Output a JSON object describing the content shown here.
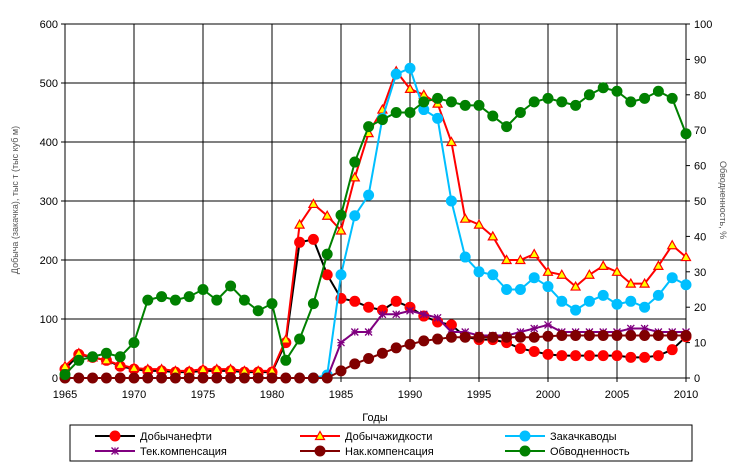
{
  "chart_data": {
    "type": "line",
    "title": "",
    "xlabel": "Годы",
    "ylabel_left": "Добыча (закачка), тыс т (тыс куб м)",
    "ylabel_right": "Обводненность, %",
    "xlim": [
      1965,
      2010
    ],
    "ylim_left": [
      0,
      600
    ],
    "ylim_right": [
      0,
      100
    ],
    "x_ticks": [
      1965,
      1970,
      1975,
      1980,
      1985,
      1990,
      1995,
      2000,
      2005,
      2010
    ],
    "y_left_ticks": [
      0,
      100,
      200,
      300,
      400,
      500,
      600
    ],
    "y_right_ticks": [
      0,
      10,
      20,
      30,
      40,
      50,
      60,
      70,
      80,
      90,
      100
    ],
    "grid": true,
    "legend_position": "bottom",
    "series": [
      {
        "name": "Добычанефти",
        "axis": "left",
        "color": "#ff0000",
        "marker": "circle",
        "x": [
          1965,
          1966,
          1967,
          1968,
          1969,
          1970,
          1971,
          1972,
          1973,
          1974,
          1975,
          1976,
          1977,
          1978,
          1979,
          1980,
          1981,
          1982,
          1983,
          1984,
          1985,
          1986,
          1987,
          1988,
          1989,
          1990,
          1991,
          1992,
          1993,
          1994,
          1995,
          1996,
          1997,
          1998,
          1999,
          2000,
          2001,
          2002,
          2003,
          2004,
          2005,
          2006,
          2007,
          2008,
          2009,
          2010
        ],
        "y": [
          15,
          40,
          35,
          30,
          20,
          15,
          12,
          12,
          10,
          10,
          12,
          12,
          12,
          10,
          10,
          10,
          60,
          230,
          235,
          175,
          135,
          130,
          120,
          115,
          130,
          120,
          105,
          95,
          90,
          70,
          65,
          65,
          60,
          50,
          45,
          40,
          38,
          38,
          38,
          38,
          38,
          35,
          35,
          38,
          48,
          70
        ]
      },
      {
        "name": "Добычажидкости",
        "axis": "left",
        "color": "#ff0000",
        "marker": "triangle",
        "x": [
          1965,
          1966,
          1967,
          1968,
          1969,
          1970,
          1971,
          1972,
          1973,
          1974,
          1975,
          1976,
          1977,
          1978,
          1979,
          1980,
          1981,
          1982,
          1983,
          1984,
          1985,
          1986,
          1987,
          1988,
          1989,
          1990,
          1991,
          1992,
          1993,
          1994,
          1995,
          1996,
          1997,
          1998,
          1999,
          2000,
          2001,
          2002,
          2003,
          2004,
          2005,
          2006,
          2007,
          2008,
          2009,
          2010
        ],
        "y": [
          20,
          42,
          35,
          30,
          22,
          17,
          15,
          15,
          12,
          12,
          15,
          15,
          15,
          12,
          12,
          12,
          65,
          260,
          295,
          275,
          250,
          340,
          415,
          455,
          520,
          490,
          480,
          465,
          400,
          270,
          260,
          240,
          200,
          200,
          210,
          180,
          175,
          155,
          175,
          190,
          180,
          160,
          160,
          190,
          225,
          205
        ]
      },
      {
        "name": "Закачкаводы",
        "axis": "left",
        "color": "#00bfff",
        "marker": "circle",
        "x": [
          1983,
          1984,
          1985,
          1986,
          1987,
          1988,
          1989,
          1990,
          1991,
          1992,
          1993,
          1994,
          1995,
          1996,
          1997,
          1998,
          1999,
          2000,
          2001,
          2002,
          2003,
          2004,
          2005,
          2006,
          2007,
          2008,
          2009,
          2010
        ],
        "y": [
          0,
          5,
          175,
          275,
          310,
          440,
          515,
          525,
          455,
          440,
          300,
          205,
          180,
          175,
          150,
          150,
          170,
          155,
          130,
          115,
          130,
          140,
          125,
          130,
          120,
          140,
          170,
          158
        ]
      },
      {
        "name": "Тек.компенсация",
        "axis": "right",
        "color": "#800080",
        "marker": "star",
        "x": [
          1965,
          1966,
          1967,
          1968,
          1969,
          1970,
          1971,
          1972,
          1973,
          1974,
          1975,
          1976,
          1977,
          1978,
          1979,
          1980,
          1981,
          1982,
          1983,
          1984,
          1985,
          1986,
          1987,
          1988,
          1989,
          1990,
          1991,
          1992,
          1993,
          1994,
          1995,
          1996,
          1997,
          1998,
          1999,
          2000,
          2001,
          2002,
          2003,
          2004,
          2005,
          2006,
          2007,
          2008,
          2009,
          2010
        ],
        "y": [
          0,
          0,
          0,
          0,
          0,
          0,
          0,
          0,
          0,
          0,
          0,
          0,
          0,
          0,
          0,
          0,
          0,
          0,
          0,
          0,
          10,
          13,
          13,
          18,
          18,
          19,
          18,
          17,
          13,
          13,
          12,
          12,
          12,
          13,
          14,
          15,
          13,
          13,
          13,
          13,
          13,
          14,
          14,
          13,
          13,
          13
        ]
      },
      {
        "name": "Нак.компенсация",
        "axis": "right",
        "color": "#800000",
        "marker": "circle",
        "x": [
          1965,
          1966,
          1967,
          1968,
          1969,
          1970,
          1971,
          1972,
          1973,
          1974,
          1975,
          1976,
          1977,
          1978,
          1979,
          1980,
          1981,
          1982,
          1983,
          1984,
          1985,
          1986,
          1987,
          1988,
          1989,
          1990,
          1991,
          1992,
          1993,
          1994,
          1995,
          1996,
          1997,
          1998,
          1999,
          2000,
          2001,
          2002,
          2003,
          2004,
          2005,
          2006,
          2007,
          2008,
          2009,
          2010
        ],
        "y": [
          0,
          0,
          0,
          0,
          0,
          0,
          0,
          0,
          0,
          0,
          0,
          0,
          0,
          0,
          0,
          0,
          0,
          0,
          0,
          0,
          2,
          4,
          5.5,
          7,
          8.5,
          9.5,
          10.5,
          11,
          11.5,
          11.5,
          11.5,
          11.5,
          11.5,
          11.5,
          11.5,
          11.8,
          12,
          12,
          12,
          12,
          12,
          12,
          12,
          12,
          12,
          12
        ]
      },
      {
        "name": "Обводненность",
        "axis": "right",
        "color": "#008000",
        "marker": "circle",
        "x": [
          1965,
          1966,
          1967,
          1968,
          1969,
          1970,
          1971,
          1972,
          1973,
          1974,
          1975,
          1976,
          1977,
          1978,
          1979,
          1980,
          1981,
          1982,
          1983,
          1984,
          1985,
          1986,
          1987,
          1988,
          1989,
          1990,
          1991,
          1992,
          1993,
          1994,
          1995,
          1996,
          1997,
          1998,
          1999,
          2000,
          2001,
          2002,
          2003,
          2004,
          2005,
          2006,
          2007,
          2008,
          2009,
          2010
        ],
        "y": [
          1,
          5,
          6,
          7,
          6,
          10,
          22,
          23,
          22,
          23,
          25,
          22,
          26,
          22,
          19,
          21,
          5,
          11,
          21,
          35,
          46,
          61,
          71,
          73,
          75,
          75,
          78,
          79,
          78,
          77,
          77,
          74,
          71,
          75,
          78,
          79,
          78,
          77,
          80,
          82,
          81,
          78,
          79,
          81,
          79,
          69
        ]
      }
    ]
  }
}
